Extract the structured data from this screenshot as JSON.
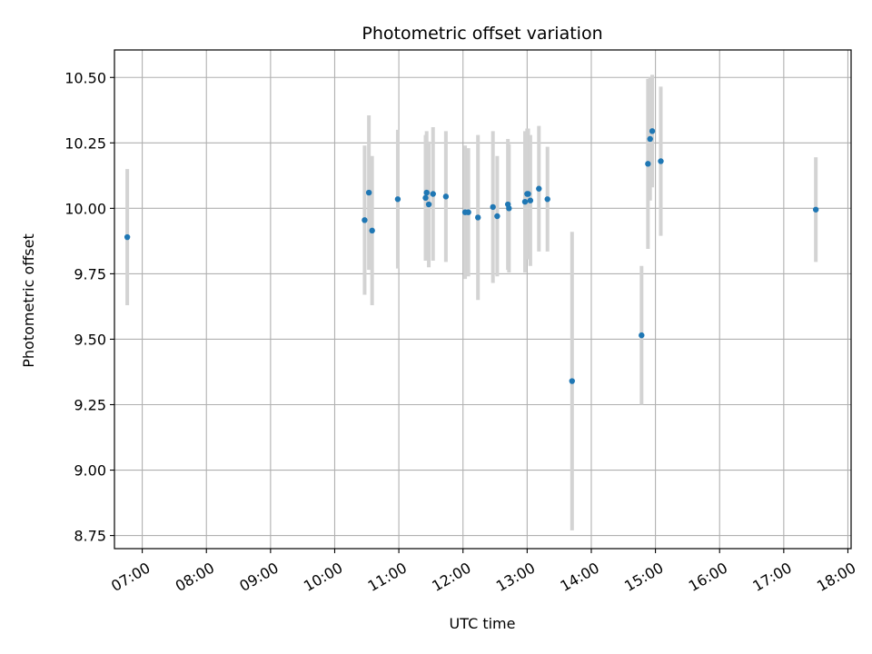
{
  "chart_data": {
    "type": "scatter",
    "title": "Photometric offset variation",
    "xlabel": "UTC time",
    "ylabel": "Photometric offset",
    "xlim": [
      "06:34",
      "18:03"
    ],
    "ylim": [
      8.7,
      10.605
    ],
    "grid": true,
    "x_ticks": [
      "07:00",
      "08:00",
      "09:00",
      "10:00",
      "11:00",
      "12:00",
      "13:00",
      "14:00",
      "15:00",
      "16:00",
      "17:00",
      "18:00"
    ],
    "y_ticks": [
      "8.75",
      "9.00",
      "9.25",
      "9.50",
      "9.75",
      "10.00",
      "10.25",
      "10.50"
    ],
    "marker_color": "#1f77b4",
    "errorbar_color": "#d3d3d3",
    "points": [
      {
        "x": "06:46",
        "y": 9.89,
        "err": 0.26
      },
      {
        "x": "10:28",
        "y": 9.955,
        "err": 0.285
      },
      {
        "x": "10:32",
        "y": 10.06,
        "err": 0.295
      },
      {
        "x": "10:35",
        "y": 9.915,
        "err": 0.285
      },
      {
        "x": "10:59",
        "y": 10.035,
        "err": 0.265
      },
      {
        "x": "11:25",
        "y": 10.04,
        "err": 0.24
      },
      {
        "x": "11:26",
        "y": 10.06,
        "err": 0.235
      },
      {
        "x": "11:28",
        "y": 10.015,
        "err": 0.24
      },
      {
        "x": "11:32",
        "y": 10.055,
        "err": 0.255
      },
      {
        "x": "11:44",
        "y": 10.045,
        "err": 0.25
      },
      {
        "x": "12:02",
        "y": 9.985,
        "err": 0.255
      },
      {
        "x": "12:05",
        "y": 9.985,
        "err": 0.245
      },
      {
        "x": "12:14",
        "y": 9.965,
        "err": 0.315
      },
      {
        "x": "12:28",
        "y": 10.005,
        "err": 0.29
      },
      {
        "x": "12:32",
        "y": 9.97,
        "err": 0.23
      },
      {
        "x": "12:42",
        "y": 10.015,
        "err": 0.25
      },
      {
        "x": "12:43",
        "y": 10.0,
        "err": 0.245
      },
      {
        "x": "12:58",
        "y": 10.025,
        "err": 0.27
      },
      {
        "x": "13:00",
        "y": 10.055,
        "err": 0.25
      },
      {
        "x": "13:01",
        "y": 10.055,
        "err": 0.25
      },
      {
        "x": "13:03",
        "y": 10.03,
        "err": 0.25
      },
      {
        "x": "13:11",
        "y": 10.075,
        "err": 0.24
      },
      {
        "x": "13:19",
        "y": 10.035,
        "err": 0.2
      },
      {
        "x": "13:42",
        "y": 9.34,
        "err": 0.57
      },
      {
        "x": "14:47",
        "y": 9.515,
        "err": 0.265
      },
      {
        "x": "14:53",
        "y": 10.17,
        "err": 0.325
      },
      {
        "x": "14:55",
        "y": 10.265,
        "err": 0.235
      },
      {
        "x": "14:57",
        "y": 10.295,
        "err": 0.215
      },
      {
        "x": "15:05",
        "y": 10.18,
        "err": 0.285
      },
      {
        "x": "17:30",
        "y": 9.995,
        "err": 0.2
      }
    ]
  }
}
